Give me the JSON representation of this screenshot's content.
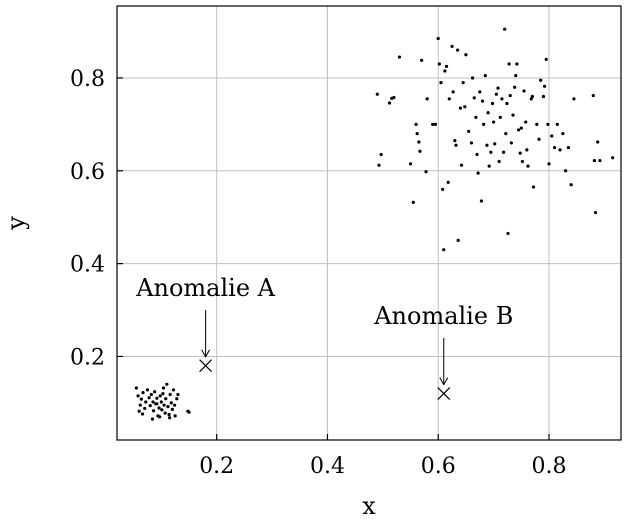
{
  "chart_data": {
    "type": "scatter",
    "title": "",
    "xlabel": "x",
    "ylabel": "y",
    "xlim": [
      0.02,
      0.93
    ],
    "ylim": [
      0.02,
      0.955
    ],
    "xticks": [
      0.2,
      0.4,
      0.6,
      0.8
    ],
    "yticks": [
      0.2,
      0.4,
      0.6,
      0.8
    ],
    "xtick_labels": [
      "0.2",
      "0.4",
      "0.6",
      "0.8"
    ],
    "ytick_labels": [
      "0.2",
      "0.4",
      "0.6",
      "0.8"
    ],
    "grid": true,
    "legend": "none",
    "series": [
      {
        "marker": "dot",
        "points": [
          [
            0.055,
            0.132
          ],
          [
            0.058,
            0.115
          ],
          [
            0.062,
            0.095
          ],
          [
            0.064,
            0.108
          ],
          [
            0.067,
            0.122
          ],
          [
            0.07,
            0.088
          ],
          [
            0.072,
            0.102
          ],
          [
            0.075,
            0.128
          ],
          [
            0.078,
            0.111
          ],
          [
            0.08,
            0.094
          ],
          [
            0.082,
            0.118
          ],
          [
            0.085,
            0.102
          ],
          [
            0.086,
            0.083
          ],
          [
            0.088,
            0.124
          ],
          [
            0.09,
            0.098
          ],
          [
            0.092,
            0.11
          ],
          [
            0.094,
            0.072
          ],
          [
            0.096,
            0.089
          ],
          [
            0.098,
            0.115
          ],
          [
            0.1,
            0.102
          ],
          [
            0.101,
            0.085
          ],
          [
            0.103,
            0.12
          ],
          [
            0.105,
            0.095
          ],
          [
            0.107,
            0.078
          ],
          [
            0.108,
            0.109
          ],
          [
            0.11,
            0.14
          ],
          [
            0.112,
            0.092
          ],
          [
            0.114,
            0.075
          ],
          [
            0.116,
            0.118
          ],
          [
            0.118,
            0.1
          ],
          [
            0.12,
            0.086
          ],
          [
            0.122,
            0.128
          ],
          [
            0.125,
            0.072
          ],
          [
            0.128,
            0.109
          ],
          [
            0.06,
            0.082
          ],
          [
            0.066,
            0.076
          ],
          [
            0.084,
            0.065
          ],
          [
            0.097,
            0.07
          ],
          [
            0.115,
            0.068
          ],
          [
            0.124,
            0.095
          ],
          [
            0.13,
            0.118
          ],
          [
            0.148,
            0.082
          ],
          [
            0.15,
            0.08
          ],
          [
            0.092,
            0.098
          ],
          [
            0.104,
            0.132
          ],
          [
            0.49,
            0.765
          ],
          [
            0.493,
            0.612
          ],
          [
            0.497,
            0.635
          ],
          [
            0.512,
            0.746
          ],
          [
            0.516,
            0.756
          ],
          [
            0.52,
            0.758
          ],
          [
            0.53,
            0.845
          ],
          [
            0.55,
            0.615
          ],
          [
            0.555,
            0.532
          ],
          [
            0.56,
            0.7
          ],
          [
            0.562,
            0.68
          ],
          [
            0.565,
            0.662
          ],
          [
            0.567,
            0.642
          ],
          [
            0.57,
            0.838
          ],
          [
            0.578,
            0.598
          ],
          [
            0.58,
            0.755
          ],
          [
            0.59,
            0.7
          ],
          [
            0.595,
            0.7
          ],
          [
            0.6,
            0.885
          ],
          [
            0.602,
            0.83
          ],
          [
            0.605,
            0.79
          ],
          [
            0.608,
            0.56
          ],
          [
            0.61,
            0.43
          ],
          [
            0.612,
            0.815
          ],
          [
            0.615,
            0.825
          ],
          [
            0.618,
            0.575
          ],
          [
            0.62,
            0.755
          ],
          [
            0.625,
            0.868
          ],
          [
            0.627,
            0.77
          ],
          [
            0.63,
            0.665
          ],
          [
            0.632,
            0.655
          ],
          [
            0.635,
            0.86
          ],
          [
            0.636,
            0.45
          ],
          [
            0.64,
            0.735
          ],
          [
            0.642,
            0.612
          ],
          [
            0.645,
            0.79
          ],
          [
            0.648,
            0.738
          ],
          [
            0.65,
            0.85
          ],
          [
            0.655,
            0.685
          ],
          [
            0.66,
            0.66
          ],
          [
            0.662,
            0.8
          ],
          [
            0.665,
            0.757
          ],
          [
            0.668,
            0.715
          ],
          [
            0.67,
            0.635
          ],
          [
            0.672,
            0.595
          ],
          [
            0.675,
            0.77
          ],
          [
            0.678,
            0.535
          ],
          [
            0.68,
            0.75
          ],
          [
            0.682,
            0.7
          ],
          [
            0.685,
            0.805
          ],
          [
            0.688,
            0.655
          ],
          [
            0.69,
            0.725
          ],
          [
            0.692,
            0.61
          ],
          [
            0.695,
            0.64
          ],
          [
            0.698,
            0.745
          ],
          [
            0.7,
            0.705
          ],
          [
            0.702,
            0.658
          ],
          [
            0.705,
            0.765
          ],
          [
            0.708,
            0.778
          ],
          [
            0.71,
            0.62
          ],
          [
            0.712,
            0.715
          ],
          [
            0.715,
            0.755
          ],
          [
            0.718,
            0.64
          ],
          [
            0.72,
            0.905
          ],
          [
            0.722,
            0.68
          ],
          [
            0.724,
            0.745
          ],
          [
            0.726,
            0.465
          ],
          [
            0.728,
            0.83
          ],
          [
            0.73,
            0.762
          ],
          [
            0.732,
            0.66
          ],
          [
            0.735,
            0.72
          ],
          [
            0.738,
            0.78
          ],
          [
            0.74,
            0.805
          ],
          [
            0.742,
            0.83
          ],
          [
            0.745,
            0.688
          ],
          [
            0.748,
            0.638
          ],
          [
            0.75,
            0.692
          ],
          [
            0.752,
            0.62
          ],
          [
            0.755,
            0.772
          ],
          [
            0.758,
            0.705
          ],
          [
            0.76,
            0.645
          ],
          [
            0.762,
            0.61
          ],
          [
            0.768,
            0.755
          ],
          [
            0.77,
            0.76
          ],
          [
            0.772,
            0.565
          ],
          [
            0.778,
            0.7
          ],
          [
            0.782,
            0.668
          ],
          [
            0.785,
            0.795
          ],
          [
            0.79,
            0.76
          ],
          [
            0.792,
            0.782
          ],
          [
            0.795,
            0.84
          ],
          [
            0.798,
            0.7
          ],
          [
            0.8,
            0.615
          ],
          [
            0.805,
            0.675
          ],
          [
            0.81,
            0.65
          ],
          [
            0.815,
            0.7
          ],
          [
            0.82,
            0.645
          ],
          [
            0.825,
            0.68
          ],
          [
            0.83,
            0.6
          ],
          [
            0.835,
            0.65
          ],
          [
            0.84,
            0.57
          ],
          [
            0.845,
            0.755
          ],
          [
            0.88,
            0.762
          ],
          [
            0.882,
            0.622
          ],
          [
            0.884,
            0.51
          ],
          [
            0.888,
            0.662
          ],
          [
            0.892,
            0.622
          ],
          [
            0.915,
            0.628
          ]
        ]
      },
      {
        "marker": "x",
        "points": [
          [
            0.18,
            0.18
          ],
          [
            0.61,
            0.12
          ]
        ]
      }
    ],
    "annotations": [
      {
        "text": "Anomalie A",
        "target": [
          0.18,
          0.18
        ],
        "label_at": [
          0.18,
          0.33
        ]
      },
      {
        "text": "Anomalie B",
        "target": [
          0.61,
          0.12
        ],
        "label_at": [
          0.61,
          0.27
        ]
      }
    ]
  }
}
